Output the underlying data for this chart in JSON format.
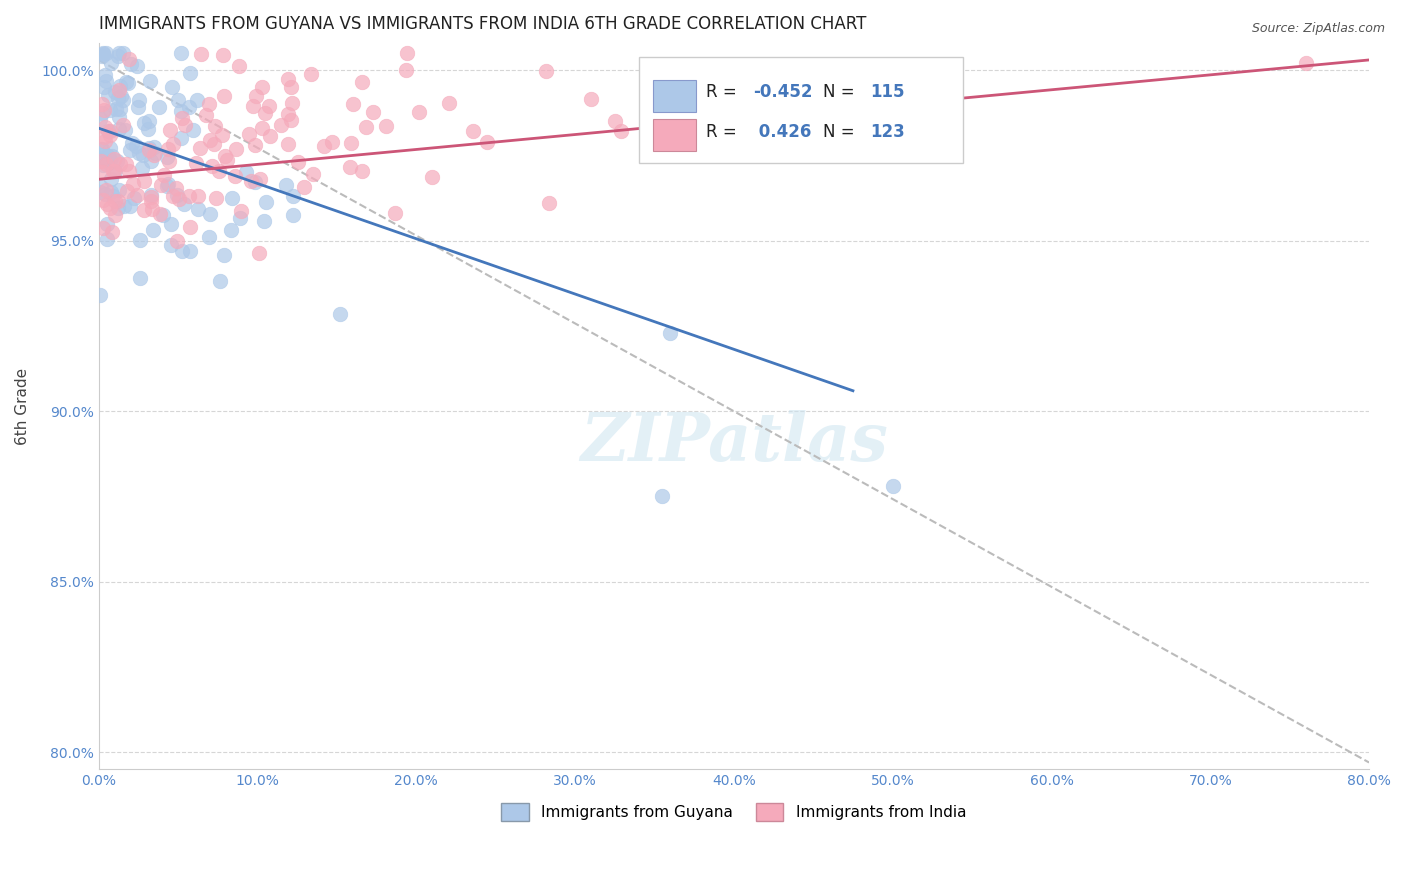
{
  "title": "IMMIGRANTS FROM GUYANA VS IMMIGRANTS FROM INDIA 6TH GRADE CORRELATION CHART",
  "source": "Source: ZipAtlas.com",
  "ylabel": "6th Grade",
  "legend_label1": "Immigrants from Guyana",
  "legend_label2": "Immigrants from India",
  "r1": -0.452,
  "n1": 115,
  "r2": 0.426,
  "n2": 123,
  "xlim": [
    0.0,
    0.8
  ],
  "ylim": [
    0.795,
    1.008
  ],
  "yticks": [
    0.8,
    0.85,
    0.9,
    0.95,
    1.0
  ],
  "xticks": [
    0.0,
    0.1,
    0.2,
    0.3,
    0.4,
    0.5,
    0.6,
    0.7,
    0.8
  ],
  "color_blue": "#adc8e8",
  "color_pink": "#f5aabb",
  "color_blue_line": "#4477bb",
  "color_pink_line": "#cc5577",
  "color_dashed": "#bbbbbb",
  "background_color": "#ffffff",
  "title_fontsize": 12,
  "axis_label_fontsize": 11,
  "tick_fontsize": 10,
  "seed": 42,
  "n_blue": 115,
  "n_pink": 123
}
